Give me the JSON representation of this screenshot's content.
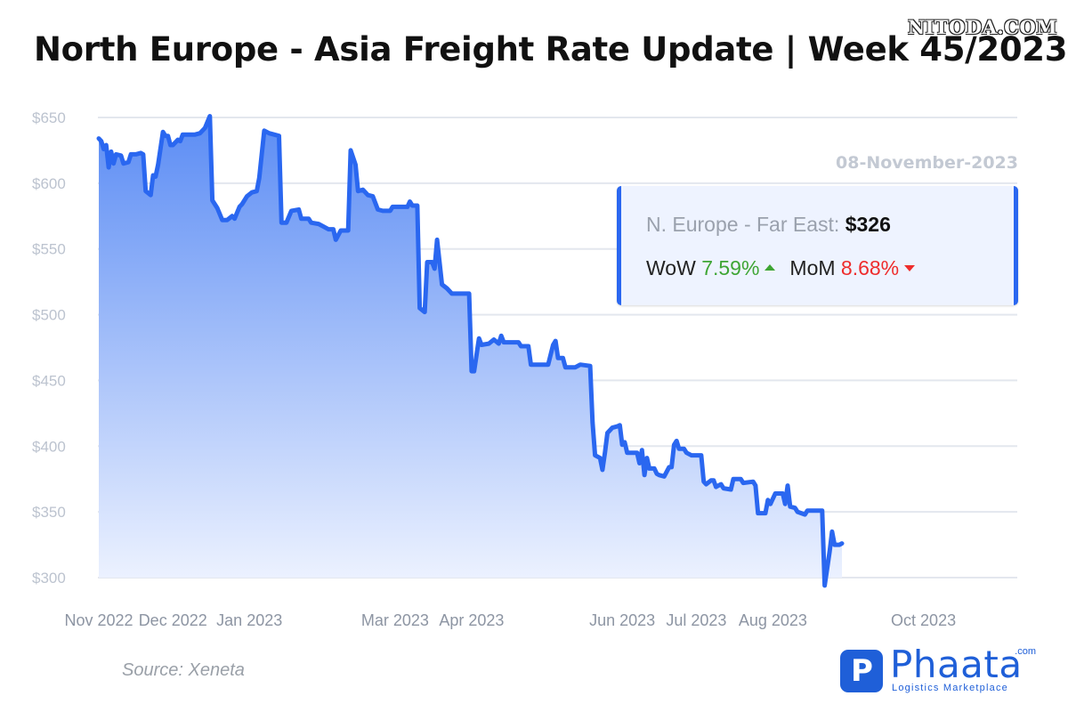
{
  "header": {
    "title": "North Europe - Asia Freight Rate Update | Week 45/2023",
    "watermark": "NITODA.COM"
  },
  "infobox": {
    "date": "08-November-2023",
    "route_label": "N. Europe - Far East:",
    "route_value": "$326",
    "wow_label": "WoW",
    "wow_value": "7.59%",
    "mom_label": "MoM",
    "mom_value": "8.68%"
  },
  "footer": {
    "source": "Source: Xeneta",
    "logo_name": "Phaata",
    "logo_com": ".com",
    "logo_tagline": "Logistics Marketplace"
  },
  "colors": {
    "line": "#2a67f0",
    "fill_top": "#5b8cf4",
    "fill_bottom": "#eef3ff",
    "grid": "#e3e7ee",
    "wow_up": "#3ea534",
    "mom_down": "#ee2c2c"
  },
  "icons": {
    "wow_trend": "triangle-up-icon",
    "mom_trend": "triangle-down-icon"
  },
  "chart_data": {
    "type": "area",
    "title": "North Europe - Asia Freight Rate Update | Week 45/2023",
    "xlabel": "",
    "ylabel": "",
    "y_unit": "$",
    "ylim": [
      300,
      650
    ],
    "yticks": [
      "$650",
      "$600",
      "$550",
      "$500",
      "$450",
      "$400",
      "$350",
      "$300"
    ],
    "ytick_values": [
      650,
      600,
      550,
      500,
      450,
      400,
      350,
      300
    ],
    "xlim": [
      "2022-11-01",
      "2023-11-08"
    ],
    "xticks": [
      "Nov 2022",
      "Dec 2022",
      "Jan 2023",
      "Mar 2023",
      "Apr 2023",
      "Jun 2023",
      "Jul 2023",
      "Aug 2023",
      "Oct 2023"
    ],
    "xtick_dates": [
      "2022-11-01",
      "2022-12-01",
      "2023-01-01",
      "2023-02-01",
      "2023-03-01",
      "2023-04-01",
      "2023-05-01",
      "2023-06-01",
      "2023-07-01",
      "2023-08-01",
      "2023-09-01",
      "2023-10-01"
    ],
    "xtick_dates_shown": [
      "2022-11-01",
      "2022-12-01",
      "2023-01-01",
      "2023-03-01",
      "2023-04-01",
      "2023-06-01",
      "2023-07-01",
      "2023-08-01",
      "2023-10-01"
    ],
    "grid": true,
    "series": [
      {
        "points": [
          [
            "2022-11-01",
            634
          ],
          [
            "2022-11-02",
            632
          ],
          [
            "2022-11-03",
            626
          ],
          [
            "2022-11-04",
            629
          ],
          [
            "2022-11-05",
            612
          ],
          [
            "2022-11-06",
            624
          ],
          [
            "2022-11-07",
            615
          ],
          [
            "2022-11-08",
            622
          ],
          [
            "2022-11-10",
            621
          ],
          [
            "2022-11-11",
            615
          ],
          [
            "2022-11-13",
            616
          ],
          [
            "2022-11-14",
            622
          ],
          [
            "2022-11-16",
            622
          ],
          [
            "2022-11-18",
            623
          ],
          [
            "2022-11-19",
            622
          ],
          [
            "2022-11-20",
            594
          ],
          [
            "2022-11-22",
            591
          ],
          [
            "2022-11-23",
            606
          ],
          [
            "2022-11-24",
            605
          ],
          [
            "2022-11-25",
            614
          ],
          [
            "2022-11-27",
            639
          ],
          [
            "2022-11-28",
            636
          ],
          [
            "2022-11-29",
            636
          ],
          [
            "2022-11-30",
            629
          ],
          [
            "2022-12-01",
            629
          ],
          [
            "2022-12-03",
            633
          ],
          [
            "2022-12-04",
            632
          ],
          [
            "2022-12-05",
            637
          ],
          [
            "2022-12-07",
            637
          ],
          [
            "2022-12-10",
            637
          ],
          [
            "2022-12-12",
            638
          ],
          [
            "2022-12-14",
            642
          ],
          [
            "2022-12-16",
            651
          ],
          [
            "2022-12-17",
            587
          ],
          [
            "2022-12-19",
            581
          ],
          [
            "2022-12-21",
            572
          ],
          [
            "2022-12-23",
            572
          ],
          [
            "2022-12-25",
            575
          ],
          [
            "2022-12-26",
            573
          ],
          [
            "2022-12-28",
            582
          ],
          [
            "2022-12-29",
            584
          ],
          [
            "2022-12-31",
            590
          ],
          [
            "2023-01-02",
            593
          ],
          [
            "2023-01-04",
            594
          ],
          [
            "2023-01-05",
            604
          ],
          [
            "2023-01-07",
            640
          ],
          [
            "2023-01-09",
            638
          ],
          [
            "2023-01-11",
            637
          ],
          [
            "2023-01-13",
            636
          ],
          [
            "2023-01-14",
            570
          ],
          [
            "2023-01-16",
            570
          ],
          [
            "2023-01-18",
            579
          ],
          [
            "2023-01-21",
            580
          ],
          [
            "2023-01-22",
            573
          ],
          [
            "2023-01-25",
            573
          ],
          [
            "2023-01-26",
            570
          ],
          [
            "2023-01-29",
            569
          ],
          [
            "2023-01-31",
            567
          ],
          [
            "2023-02-02",
            565
          ],
          [
            "2023-02-04",
            565
          ],
          [
            "2023-02-05",
            557
          ],
          [
            "2023-02-07",
            564
          ],
          [
            "2023-02-10",
            564
          ],
          [
            "2023-02-11",
            625
          ],
          [
            "2023-02-13",
            614
          ],
          [
            "2023-02-14",
            594
          ],
          [
            "2023-02-16",
            595
          ],
          [
            "2023-02-18",
            591
          ],
          [
            "2023-02-20",
            590
          ],
          [
            "2023-02-21",
            585
          ],
          [
            "2023-02-22",
            580
          ],
          [
            "2023-02-24",
            579
          ],
          [
            "2023-02-27",
            579
          ],
          [
            "2023-02-28",
            582
          ],
          [
            "2023-03-03",
            582
          ],
          [
            "2023-03-06",
            582
          ],
          [
            "2023-03-07",
            586
          ],
          [
            "2023-03-08",
            583
          ],
          [
            "2023-03-10",
            583
          ],
          [
            "2023-03-11",
            505
          ],
          [
            "2023-03-13",
            502
          ],
          [
            "2023-03-14",
            540
          ],
          [
            "2023-03-16",
            540
          ],
          [
            "2023-03-17",
            535
          ],
          [
            "2023-03-18",
            557
          ],
          [
            "2023-03-20",
            523
          ],
          [
            "2023-03-22",
            520
          ],
          [
            "2023-03-24",
            516
          ],
          [
            "2023-03-28",
            516
          ],
          [
            "2023-03-31",
            516
          ],
          [
            "2023-04-01",
            457
          ],
          [
            "2023-04-02",
            457
          ],
          [
            "2023-04-04",
            482
          ],
          [
            "2023-04-05",
            477
          ],
          [
            "2023-04-08",
            478
          ],
          [
            "2023-04-10",
            481
          ],
          [
            "2023-04-12",
            478
          ],
          [
            "2023-04-13",
            484
          ],
          [
            "2023-04-14",
            479
          ],
          [
            "2023-04-16",
            479
          ],
          [
            "2023-04-20",
            479
          ],
          [
            "2023-04-21",
            476
          ],
          [
            "2023-04-24",
            476
          ],
          [
            "2023-04-25",
            462
          ],
          [
            "2023-04-28",
            462
          ],
          [
            "2023-05-02",
            462
          ],
          [
            "2023-05-04",
            477
          ],
          [
            "2023-05-05",
            480
          ],
          [
            "2023-05-06",
            467
          ],
          [
            "2023-05-08",
            467
          ],
          [
            "2023-05-09",
            460
          ],
          [
            "2023-05-13",
            460
          ],
          [
            "2023-05-15",
            462
          ],
          [
            "2023-05-19",
            461
          ],
          [
            "2023-05-20",
            418
          ],
          [
            "2023-05-21",
            393
          ],
          [
            "2023-05-23",
            391
          ],
          [
            "2023-05-24",
            382
          ],
          [
            "2023-05-25",
            395
          ],
          [
            "2023-05-26",
            410
          ],
          [
            "2023-05-28",
            414
          ],
          [
            "2023-05-30",
            415
          ],
          [
            "2023-05-31",
            416
          ],
          [
            "2023-06-01",
            401
          ],
          [
            "2023-06-02",
            403
          ],
          [
            "2023-06-03",
            395
          ],
          [
            "2023-06-07",
            395
          ],
          [
            "2023-06-08",
            387
          ],
          [
            "2023-06-09",
            397
          ],
          [
            "2023-06-10",
            378
          ],
          [
            "2023-06-11",
            391
          ],
          [
            "2023-06-12",
            383
          ],
          [
            "2023-06-14",
            383
          ],
          [
            "2023-06-15",
            379
          ],
          [
            "2023-06-16",
            378
          ],
          [
            "2023-06-18",
            377
          ],
          [
            "2023-06-20",
            384
          ],
          [
            "2023-06-21",
            384
          ],
          [
            "2023-06-22",
            401
          ],
          [
            "2023-06-23",
            404
          ],
          [
            "2023-06-24",
            398
          ],
          [
            "2023-06-26",
            398
          ],
          [
            "2023-06-27",
            395
          ],
          [
            "2023-06-29",
            393
          ],
          [
            "2023-07-03",
            393
          ],
          [
            "2023-07-04",
            373
          ],
          [
            "2023-07-05",
            371
          ],
          [
            "2023-07-07",
            374
          ],
          [
            "2023-07-08",
            374
          ],
          [
            "2023-07-09",
            369
          ],
          [
            "2023-07-11",
            371
          ],
          [
            "2023-07-12",
            368
          ],
          [
            "2023-07-15",
            367
          ],
          [
            "2023-07-16",
            375
          ],
          [
            "2023-07-19",
            375
          ],
          [
            "2023-07-20",
            372
          ],
          [
            "2023-07-24",
            373
          ],
          [
            "2023-07-25",
            370
          ],
          [
            "2023-07-26",
            349
          ],
          [
            "2023-07-29",
            349
          ],
          [
            "2023-07-30",
            359
          ],
          [
            "2023-07-31",
            356
          ],
          [
            "2023-08-02",
            364
          ],
          [
            "2023-08-05",
            364
          ],
          [
            "2023-08-06",
            356
          ],
          [
            "2023-08-07",
            370
          ],
          [
            "2023-08-08",
            354
          ],
          [
            "2023-08-10",
            353
          ],
          [
            "2023-08-11",
            350
          ],
          [
            "2023-08-14",
            348
          ],
          [
            "2023-08-15",
            351
          ],
          [
            "2023-08-20",
            351
          ],
          [
            "2023-08-21",
            351
          ],
          [
            "2023-08-22",
            294
          ],
          [
            "2023-08-24",
            320
          ],
          [
            "2023-08-25",
            335
          ],
          [
            "2023-08-26",
            325
          ],
          [
            "2023-08-28",
            325
          ],
          [
            "2023-08-29",
            326
          ]
        ]
      }
    ]
  }
}
